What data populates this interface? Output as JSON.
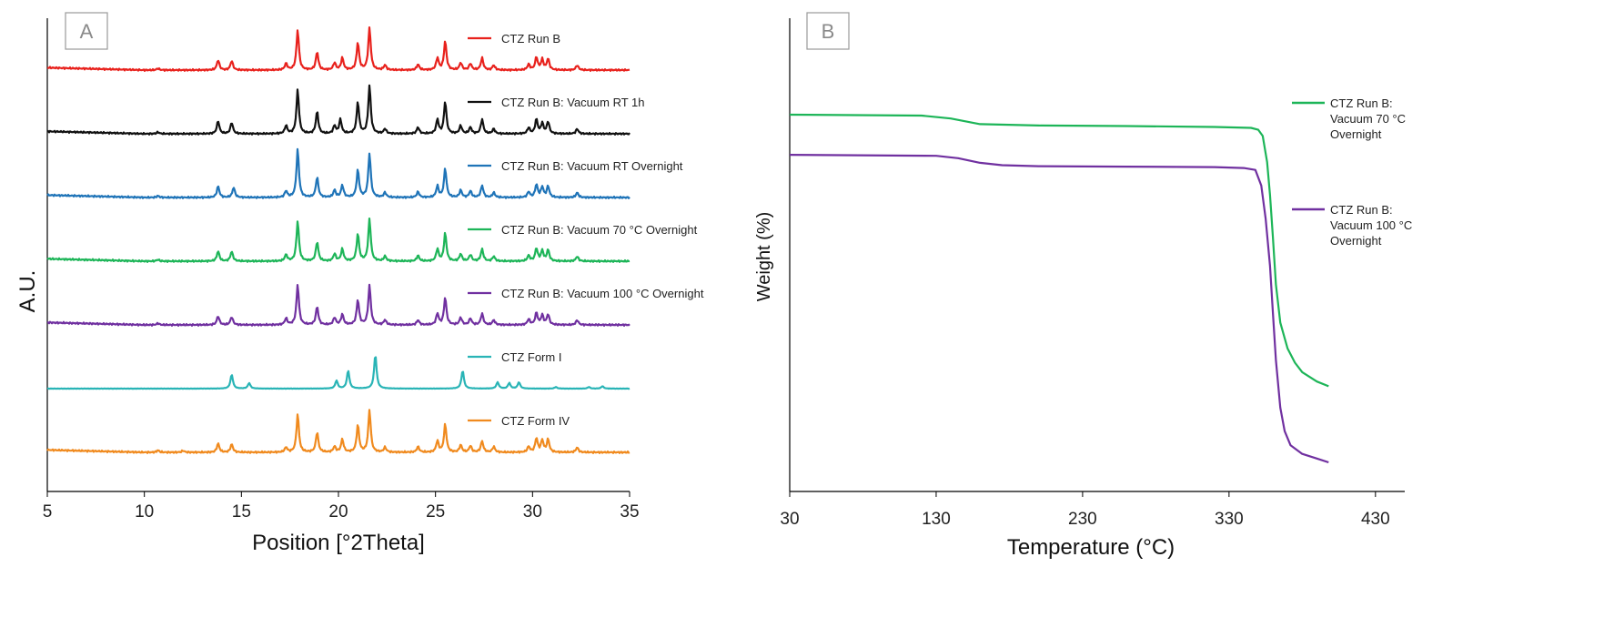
{
  "chart_data": [
    {
      "panel": "A",
      "type": "line",
      "xlabel": "Position [°2Theta]",
      "ylabel": "A.U.",
      "xlim": [
        5,
        35
      ],
      "xticks": [
        5,
        10,
        15,
        20,
        25,
        30,
        35
      ],
      "legend_placement": "inline-right",
      "series": [
        {
          "name": "CTZ Run B",
          "color": "#e8211c",
          "offset": 6,
          "peaks": [
            [
              10.7,
              0.4
            ],
            [
              13.8,
              2.5
            ],
            [
              14.5,
              2.3
            ],
            [
              17.3,
              1.6
            ],
            [
              17.9,
              10
            ],
            [
              18.9,
              4.5
            ],
            [
              19.8,
              1.8
            ],
            [
              20.2,
              3
            ],
            [
              21.0,
              6.8
            ],
            [
              21.6,
              10.5
            ],
            [
              22.4,
              1.2
            ],
            [
              24.1,
              1.4
            ],
            [
              25.1,
              3
            ],
            [
              25.5,
              7.2
            ],
            [
              26.3,
              1.8
            ],
            [
              26.8,
              1.6
            ],
            [
              27.4,
              3
            ],
            [
              28.0,
              1.2
            ],
            [
              29.8,
              1.4
            ],
            [
              30.2,
              3.2
            ],
            [
              30.5,
              2.6
            ],
            [
              30.8,
              2.8
            ],
            [
              32.3,
              1.2
            ]
          ]
        },
        {
          "name": "CTZ Run B: Vacuum RT 1h",
          "color": "#111111",
          "offset": 5,
          "peaks": [
            [
              10.7,
              0.4
            ],
            [
              13.8,
              3.2
            ],
            [
              14.5,
              2.8
            ],
            [
              17.3,
              2
            ],
            [
              17.9,
              11
            ],
            [
              18.9,
              5.5
            ],
            [
              19.8,
              2
            ],
            [
              20.1,
              3.5
            ],
            [
              21.0,
              7.8
            ],
            [
              21.6,
              12
            ],
            [
              22.4,
              1.2
            ],
            [
              24.1,
              1.6
            ],
            [
              25.1,
              3.5
            ],
            [
              25.5,
              8
            ],
            [
              26.3,
              2
            ],
            [
              26.8,
              1.6
            ],
            [
              27.4,
              3.6
            ],
            [
              28.0,
              1.2
            ],
            [
              29.8,
              1.5
            ],
            [
              30.2,
              3.6
            ],
            [
              30.5,
              2.6
            ],
            [
              30.8,
              3
            ],
            [
              32.3,
              1.2
            ]
          ]
        },
        {
          "name": "CTZ Run B: Vacuum RT Overnight",
          "color": "#1f74b8",
          "offset": 4,
          "peaks": [
            [
              10.7,
              0.4
            ],
            [
              13.8,
              2.8
            ],
            [
              14.6,
              2.5
            ],
            [
              17.3,
              1.6
            ],
            [
              17.9,
              12
            ],
            [
              18.9,
              5
            ],
            [
              19.8,
              1.8
            ],
            [
              20.2,
              3
            ],
            [
              21.0,
              6.8
            ],
            [
              21.6,
              11
            ],
            [
              22.4,
              1.2
            ],
            [
              24.1,
              1.4
            ],
            [
              25.1,
              2.8
            ],
            [
              25.5,
              7.2
            ],
            [
              26.3,
              1.8
            ],
            [
              26.8,
              1.6
            ],
            [
              27.4,
              3
            ],
            [
              28.0,
              1.2
            ],
            [
              29.8,
              1.4
            ],
            [
              30.2,
              3.2
            ],
            [
              30.5,
              2.6
            ],
            [
              30.8,
              2.8
            ],
            [
              32.3,
              1.2
            ]
          ]
        },
        {
          "name": "CTZ Run B: Vacuum 70 °C Overnight",
          "color": "#1db558",
          "offset": 3,
          "peaks": [
            [
              10.7,
              0.4
            ],
            [
              13.8,
              2.5
            ],
            [
              14.5,
              2.4
            ],
            [
              17.3,
              1.6
            ],
            [
              17.9,
              10
            ],
            [
              18.9,
              4.8
            ],
            [
              19.8,
              1.8
            ],
            [
              20.2,
              3
            ],
            [
              21.0,
              6.8
            ],
            [
              21.6,
              10.5
            ],
            [
              22.4,
              1.2
            ],
            [
              24.1,
              1.4
            ],
            [
              25.1,
              3
            ],
            [
              25.5,
              7
            ],
            [
              26.3,
              1.8
            ],
            [
              26.8,
              1.6
            ],
            [
              27.4,
              3
            ],
            [
              28.0,
              1.2
            ],
            [
              29.8,
              1.4
            ],
            [
              30.2,
              3.2
            ],
            [
              30.5,
              2.6
            ],
            [
              30.8,
              2.8
            ],
            [
              32.3,
              1.2
            ]
          ]
        },
        {
          "name": "CTZ Run B: Vacuum 100 °C Overnight",
          "color": "#7030a0",
          "offset": 2,
          "peaks": [
            [
              10.7,
              0.4
            ],
            [
              13.8,
              2.2
            ],
            [
              14.5,
              2
            ],
            [
              17.3,
              1.6
            ],
            [
              17.9,
              10
            ],
            [
              18.9,
              4.5
            ],
            [
              19.8,
              1.8
            ],
            [
              20.2,
              2.6
            ],
            [
              21.0,
              6.2
            ],
            [
              21.6,
              9.8
            ],
            [
              22.4,
              1.2
            ],
            [
              24.1,
              1.2
            ],
            [
              25.1,
              2.8
            ],
            [
              25.5,
              6.8
            ],
            [
              26.3,
              1.8
            ],
            [
              26.8,
              1.6
            ],
            [
              27.4,
              2.8
            ],
            [
              28.0,
              1.2
            ],
            [
              29.8,
              1.4
            ],
            [
              30.2,
              3
            ],
            [
              30.5,
              2.4
            ],
            [
              30.8,
              2.6
            ],
            [
              32.3,
              1.2
            ]
          ]
        },
        {
          "name": "CTZ Form I",
          "color": "#29b4b6",
          "offset": 1,
          "peaks": [
            [
              14.5,
              3.5
            ],
            [
              15.4,
              1.4
            ],
            [
              19.9,
              2
            ],
            [
              20.5,
              4.5
            ],
            [
              21.9,
              8.5
            ],
            [
              26.4,
              4.5
            ],
            [
              28.2,
              1.6
            ],
            [
              28.8,
              1.4
            ],
            [
              29.3,
              1.6
            ],
            [
              31.2,
              0.4
            ],
            [
              32.9,
              0.4
            ],
            [
              33.6,
              0.6
            ]
          ]
        },
        {
          "name": "CTZ Form IV",
          "color": "#f08a1e",
          "offset": 0,
          "peaks": [
            [
              10.7,
              0.5
            ],
            [
              12.0,
              0.4
            ],
            [
              13.8,
              2.2
            ],
            [
              14.5,
              2
            ],
            [
              17.3,
              1.2
            ],
            [
              17.9,
              9.5
            ],
            [
              18.9,
              5
            ],
            [
              19.8,
              1.4
            ],
            [
              20.2,
              3.2
            ],
            [
              21.0,
              6.8
            ],
            [
              21.6,
              10.5
            ],
            [
              22.4,
              1.2
            ],
            [
              24.1,
              1.4
            ],
            [
              25.1,
              2.8
            ],
            [
              25.5,
              7
            ],
            [
              26.3,
              1.8
            ],
            [
              26.8,
              1.6
            ],
            [
              27.4,
              2.8
            ],
            [
              28.0,
              1.4
            ],
            [
              29.8,
              1.4
            ],
            [
              30.2,
              3.5
            ],
            [
              30.5,
              3
            ],
            [
              30.8,
              3.2
            ],
            [
              32.3,
              1.2
            ]
          ]
        }
      ]
    },
    {
      "panel": "B",
      "type": "line",
      "xlabel": "Temperature (°C)",
      "ylabel": "Weight (%)",
      "xlim": [
        30,
        450
      ],
      "xticks": [
        30,
        130,
        230,
        330,
        430
      ],
      "legend_placement": "right",
      "series": [
        {
          "name": "CTZ Run B: Vacuum 70 °C Overnight",
          "color": "#1db558",
          "x": [
            30,
            120,
            140,
            160,
            200,
            260,
            320,
            345,
            350,
            353,
            356,
            358,
            360,
            362,
            365,
            370,
            375,
            380,
            390,
            398
          ],
          "y": [
            100,
            99.8,
            99.2,
            98.0,
            97.7,
            97.6,
            97.4,
            97.2,
            96.8,
            95.5,
            90.0,
            83.0,
            74.0,
            64.0,
            56.0,
            50.5,
            47.5,
            45.5,
            43.5,
            42.5
          ]
        },
        {
          "name": "CTZ Run B: Vacuum 100 °C Overnight",
          "color": "#7030a0",
          "x": [
            30,
            130,
            145,
            160,
            175,
            200,
            260,
            320,
            340,
            348,
            352,
            355,
            358,
            360,
            362,
            365,
            368,
            372,
            380,
            390,
            398
          ],
          "y": [
            91.5,
            91.3,
            90.8,
            89.8,
            89.3,
            89.1,
            89.0,
            88.9,
            88.7,
            88.3,
            85.0,
            78.0,
            68.0,
            58.0,
            48.0,
            38.0,
            33.0,
            30.0,
            28.2,
            27.2,
            26.4
          ]
        }
      ]
    }
  ],
  "panels": {
    "a": {
      "label": "A"
    },
    "b": {
      "label": "B"
    }
  }
}
